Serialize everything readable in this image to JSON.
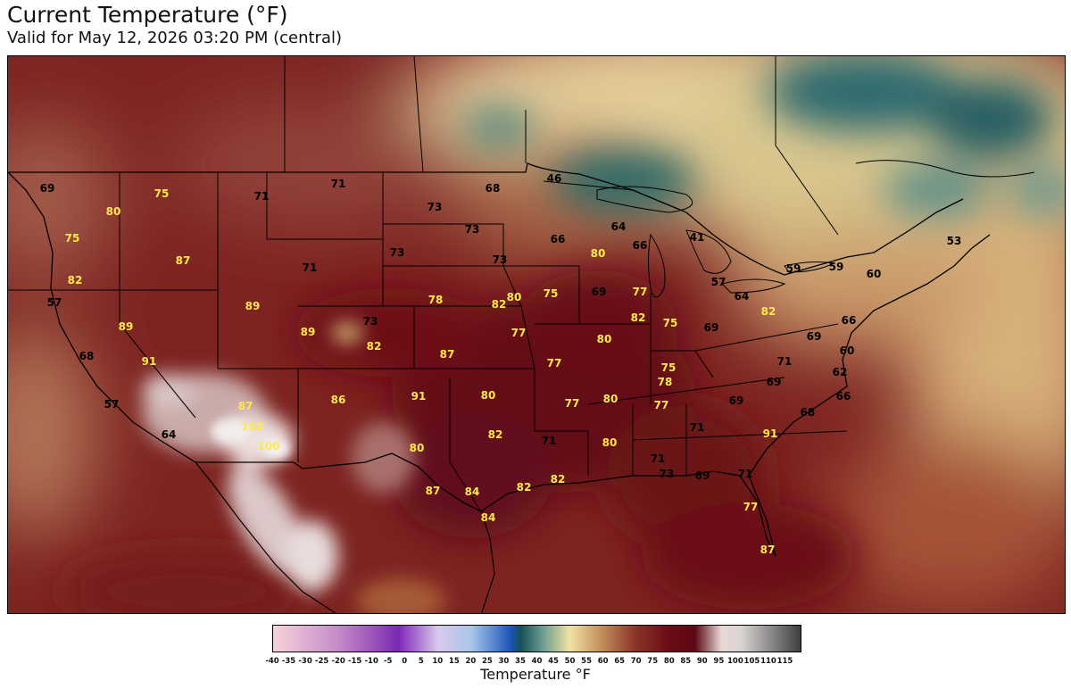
{
  "title": "Current Temperature (°F)",
  "subtitle": "Valid for May 12, 2026 03:20 PM (central)",
  "colorbar": {
    "label": "Temperature °F",
    "ticks": [
      "-40",
      "-35",
      "-30",
      "-25",
      "-20",
      "-15",
      "-10",
      "-5",
      "0",
      "5",
      "10",
      "15",
      "20",
      "25",
      "30",
      "35",
      "40",
      "45",
      "50",
      "55",
      "60",
      "65",
      "70",
      "75",
      "80",
      "85",
      "90",
      "95",
      "100",
      "105",
      "110",
      "115"
    ],
    "min": -40,
    "max": 120,
    "stops": [
      {
        "value": -40,
        "color": "#f6d3dc"
      },
      {
        "value": -20,
        "color": "#c48ac8"
      },
      {
        "value": -2,
        "color": "#7a2ab0"
      },
      {
        "value": 0,
        "color": "#8f3fc0"
      },
      {
        "value": 10,
        "color": "#d8c8ec"
      },
      {
        "value": 20,
        "color": "#a8c8ea"
      },
      {
        "value": 32,
        "color": "#1f55b8"
      },
      {
        "value": 35,
        "color": "#174f55"
      },
      {
        "value": 42,
        "color": "#6f9e94"
      },
      {
        "value": 50,
        "color": "#f0e2a4"
      },
      {
        "value": 60,
        "color": "#c08a5a"
      },
      {
        "value": 70,
        "color": "#8a3428"
      },
      {
        "value": 80,
        "color": "#6a0c16"
      },
      {
        "value": 88,
        "color": "#5a0a14"
      },
      {
        "value": 96,
        "color": "#e8d8d4"
      },
      {
        "value": 102,
        "color": "#d8d4d2"
      },
      {
        "value": 120,
        "color": "#3e3e3e"
      }
    ]
  },
  "map": {
    "region": "Continental United States",
    "warm_color": "#7a1c1e",
    "label_yellow_color": "#ffe94a",
    "label_black_color": "#000000",
    "station_labels": [
      {
        "value": "69",
        "style": "black"
      },
      {
        "value": "75",
        "style": "yellow"
      },
      {
        "value": "71",
        "style": "black"
      },
      {
        "value": "71",
        "style": "black"
      },
      {
        "value": "68",
        "style": "black"
      },
      {
        "value": "46",
        "style": "black"
      },
      {
        "value": "80",
        "style": "yellow"
      },
      {
        "value": "73",
        "style": "black"
      },
      {
        "value": "75",
        "style": "yellow"
      },
      {
        "value": "73",
        "style": "black"
      },
      {
        "value": "64",
        "style": "black"
      },
      {
        "value": "66",
        "style": "black"
      },
      {
        "value": "66",
        "style": "black"
      },
      {
        "value": "41",
        "style": "black"
      },
      {
        "value": "53",
        "style": "black"
      },
      {
        "value": "87",
        "style": "yellow"
      },
      {
        "value": "71",
        "style": "black"
      },
      {
        "value": "73",
        "style": "black"
      },
      {
        "value": "73",
        "style": "black"
      },
      {
        "value": "80",
        "style": "yellow"
      },
      {
        "value": "59",
        "style": "black"
      },
      {
        "value": "59",
        "style": "black"
      },
      {
        "value": "82",
        "style": "yellow"
      },
      {
        "value": "60",
        "style": "black"
      },
      {
        "value": "57",
        "style": "black"
      },
      {
        "value": "89",
        "style": "yellow"
      },
      {
        "value": "78",
        "style": "yellow"
      },
      {
        "value": "82",
        "style": "yellow"
      },
      {
        "value": "80",
        "style": "yellow"
      },
      {
        "value": "75",
        "style": "yellow"
      },
      {
        "value": "69",
        "style": "black"
      },
      {
        "value": "77",
        "style": "yellow"
      },
      {
        "value": "57",
        "style": "black"
      },
      {
        "value": "64",
        "style": "black"
      },
      {
        "value": "89",
        "style": "yellow"
      },
      {
        "value": "73",
        "style": "black"
      },
      {
        "value": "82",
        "style": "yellow"
      },
      {
        "value": "82",
        "style": "yellow"
      },
      {
        "value": "75",
        "style": "yellow"
      },
      {
        "value": "66",
        "style": "black"
      },
      {
        "value": "68",
        "style": "black"
      },
      {
        "value": "89",
        "style": "yellow"
      },
      {
        "value": "80",
        "style": "yellow"
      },
      {
        "value": "69",
        "style": "black"
      },
      {
        "value": "69",
        "style": "black"
      },
      {
        "value": "60",
        "style": "black"
      },
      {
        "value": "91",
        "style": "yellow"
      },
      {
        "value": "77",
        "style": "yellow"
      },
      {
        "value": "82",
        "style": "yellow"
      },
      {
        "value": "87",
        "style": "yellow"
      },
      {
        "value": "77",
        "style": "yellow"
      },
      {
        "value": "75",
        "style": "yellow"
      },
      {
        "value": "71",
        "style": "black"
      },
      {
        "value": "62",
        "style": "black"
      },
      {
        "value": "78",
        "style": "yellow"
      },
      {
        "value": "69",
        "style": "black"
      },
      {
        "value": "66",
        "style": "black"
      },
      {
        "value": "91",
        "style": "yellow"
      },
      {
        "value": "80",
        "style": "yellow"
      },
      {
        "value": "57",
        "style": "black"
      },
      {
        "value": "87",
        "style": "yellow"
      },
      {
        "value": "86",
        "style": "yellow"
      },
      {
        "value": "77",
        "style": "yellow"
      },
      {
        "value": "80",
        "style": "yellow"
      },
      {
        "value": "77",
        "style": "yellow"
      },
      {
        "value": "69",
        "style": "black"
      },
      {
        "value": "68",
        "style": "black"
      },
      {
        "value": "102",
        "style": "yellow"
      },
      {
        "value": "64",
        "style": "black"
      },
      {
        "value": "100",
        "style": "yellow"
      },
      {
        "value": "82",
        "style": "yellow"
      },
      {
        "value": "71",
        "style": "black"
      },
      {
        "value": "71",
        "style": "black"
      },
      {
        "value": "80",
        "style": "yellow"
      },
      {
        "value": "80",
        "style": "yellow"
      },
      {
        "value": "91",
        "style": "yellow"
      },
      {
        "value": "71",
        "style": "black"
      },
      {
        "value": "73",
        "style": "black"
      },
      {
        "value": "69",
        "style": "black"
      },
      {
        "value": "71",
        "style": "black"
      },
      {
        "value": "82",
        "style": "yellow"
      },
      {
        "value": "87",
        "style": "yellow"
      },
      {
        "value": "84",
        "style": "yellow"
      },
      {
        "value": "82",
        "style": "yellow"
      },
      {
        "value": "77",
        "style": "yellow"
      },
      {
        "value": "84",
        "style": "yellow"
      },
      {
        "value": "87",
        "style": "yellow"
      }
    ]
  }
}
